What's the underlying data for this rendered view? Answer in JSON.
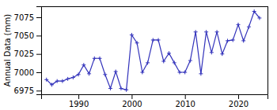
{
  "chart_data": {
    "type": "line",
    "ylabel": "Annual Data (mm)",
    "x": [
      1984,
      1985,
      1986,
      1987,
      1988,
      1989,
      1990,
      1991,
      1992,
      1993,
      1994,
      1995,
      1996,
      1997,
      1998,
      1999,
      2000,
      2001,
      2002,
      2003,
      2004,
      2005,
      2006,
      2007,
      2008,
      2009,
      2010,
      2011,
      2012,
      2013,
      2014,
      2015,
      2016,
      2017,
      2018,
      2019,
      2020,
      2021,
      2022,
      2023,
      2024
    ],
    "values": [
      6990,
      6983,
      6988,
      6988,
      6991,
      6993,
      6997,
      7010,
      6998,
      7019,
      7019,
      6997,
      6978,
      7001,
      6978,
      6976,
      7051,
      7040,
      7000,
      7013,
      7044,
      7044,
      7015,
      7026,
      7013,
      7000,
      7000,
      7016,
      7055,
      6998,
      7055,
      7027,
      7055,
      7025,
      7043,
      7044,
      7065,
      7043,
      7062,
      7083,
      7074
    ],
    "color": "#3333bb",
    "marker": "plus",
    "xlim": [
      1983,
      2025.5
    ],
    "xticks": [
      1990,
      2000,
      2010,
      2020
    ],
    "ylim": [
      6970,
      7090
    ],
    "yticks": [
      6975,
      7000,
      7025,
      7050,
      7075
    ],
    "grid": false
  }
}
